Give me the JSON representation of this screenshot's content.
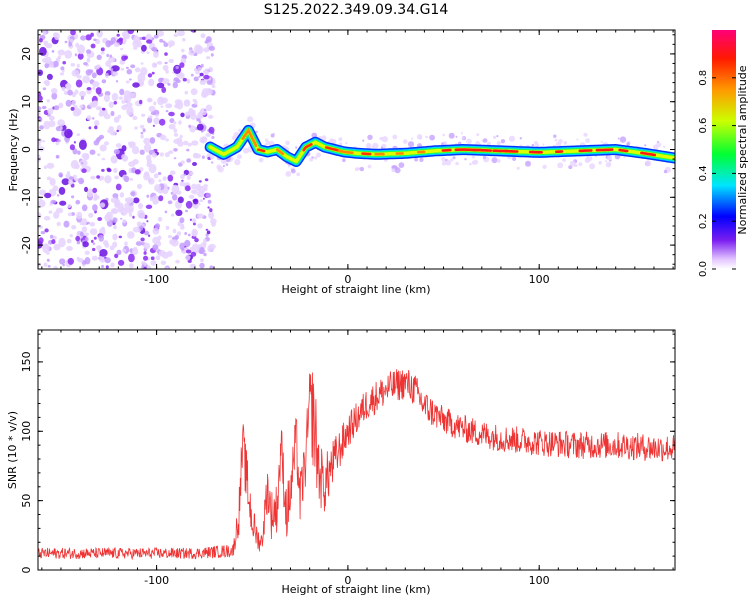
{
  "figure": {
    "title": "S125.2022.349.09.34.G14"
  },
  "chart_data": [
    {
      "type": "heatmap",
      "xlabel": "Height of straight line (km)",
      "ylabel": "Frequency (Hz)",
      "xlim": [
        -162,
        171
      ],
      "ylim": [
        -25,
        25
      ],
      "xticks": [
        -100,
        0,
        100
      ],
      "yticks": [
        -20,
        -10,
        0,
        10,
        20
      ],
      "noise_region_x": [
        -162,
        -72
      ],
      "ridge": {
        "x": [
          -72,
          -65,
          -58,
          -52,
          -47,
          -42,
          -37,
          -32,
          -27,
          -22,
          -17,
          -12,
          -7,
          -2,
          5,
          15,
          30,
          45,
          60,
          80,
          100,
          120,
          140,
          155,
          171
        ],
        "freq": [
          0.5,
          -1.0,
          0.5,
          4.0,
          0.0,
          -0.5,
          0.0,
          -1.5,
          -2.5,
          0.5,
          1.5,
          0.5,
          0.0,
          -0.5,
          -0.8,
          -1.0,
          -0.8,
          -0.3,
          0.0,
          -0.3,
          -0.6,
          -0.3,
          0.0,
          -0.8,
          -1.8
        ]
      },
      "colorbar": {
        "label": "Normalized spectral amplitude",
        "range": [
          0,
          1
        ],
        "ticks": [
          0.0,
          0.2,
          0.4,
          0.6,
          0.8
        ]
      }
    },
    {
      "type": "line",
      "xlabel": "Height of straight line (km)",
      "ylabel": "SNR (10 * v/v)",
      "xlim": [
        -162,
        171
      ],
      "ylim": [
        0,
        173
      ],
      "xticks": [
        -100,
        0,
        100
      ],
      "yticks": [
        0,
        50,
        100,
        150
      ],
      "color": "#ee3333",
      "series": [
        {
          "x": [
            -162,
            -140,
            -120,
            -100,
            -80,
            -60,
            -57,
            -55,
            -52,
            -50,
            -47,
            -45,
            -42,
            -40,
            -37,
            -35,
            -32,
            -30,
            -27,
            -25,
            -22,
            -20,
            -18,
            -15,
            -12,
            -10,
            -5,
            0,
            5,
            10,
            15,
            20,
            25,
            30,
            35,
            40,
            50,
            60,
            70,
            80,
            100,
            120,
            140,
            160,
            171
          ],
          "y": [
            12,
            12,
            12,
            12,
            12,
            14,
            40,
            90,
            55,
            35,
            22,
            20,
            60,
            40,
            45,
            90,
            40,
            55,
            95,
            50,
            80,
            120,
            110,
            70,
            60,
            70,
            85,
            100,
            110,
            120,
            125,
            130,
            133,
            135,
            130,
            118,
            108,
            102,
            98,
            95,
            92,
            90,
            90,
            88,
            88
          ],
          "noise": [
            4,
            4,
            4,
            4,
            4,
            5,
            15,
            20,
            20,
            15,
            8,
            8,
            18,
            18,
            18,
            20,
            20,
            20,
            20,
            20,
            20,
            25,
            40,
            25,
            20,
            20,
            15,
            12,
            12,
            12,
            12,
            12,
            12,
            12,
            12,
            12,
            10,
            10,
            10,
            10,
            10,
            10,
            10,
            10,
            10
          ]
        }
      ]
    }
  ]
}
